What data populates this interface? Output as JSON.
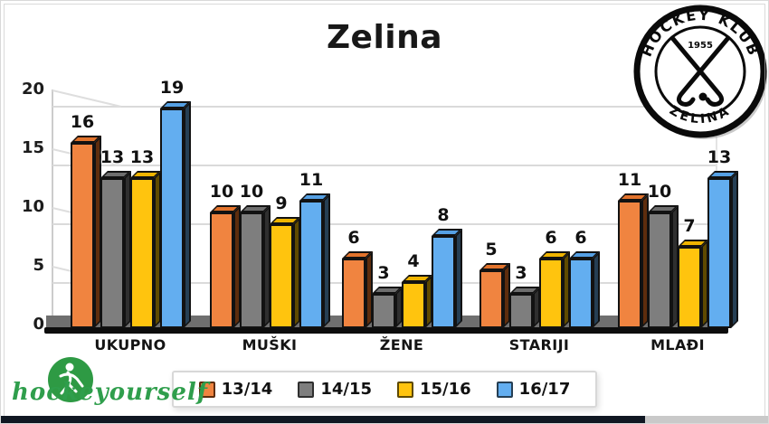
{
  "title": "Zelina",
  "logo": {
    "top_text": "HOCKEY KLUB",
    "bottom_text": "ZELINA",
    "year": "1955"
  },
  "watermark": {
    "text": "hockeyourself"
  },
  "video_progress": {
    "percent": 84
  },
  "chart_data": {
    "type": "bar",
    "style": "3d-clustered-column",
    "title": "Zelina",
    "categories": [
      "UKUPNO",
      "MUŠKI",
      "ŽENE",
      "STARIJI",
      "MLAĐI"
    ],
    "series": [
      {
        "name": "13/14",
        "color": "#F08440",
        "side_color": "#5E2D0D",
        "top_color": "#E2732C",
        "values": [
          16,
          10,
          6,
          5,
          11
        ]
      },
      {
        "name": "14/15",
        "color": "#7E7E7E",
        "side_color": "#2F2F2F",
        "top_color": "#6E6E6E",
        "values": [
          13,
          10,
          3,
          3,
          10
        ]
      },
      {
        "name": "15/16",
        "color": "#FFC40E",
        "side_color": "#5F4A00",
        "top_color": "#EFB400",
        "values": [
          13,
          9,
          4,
          6,
          7
        ]
      },
      {
        "name": "16/17",
        "color": "#63AEF0",
        "side_color": "#263F54",
        "top_color": "#55A0E4",
        "values": [
          19,
          11,
          8,
          6,
          13
        ]
      }
    ],
    "ylim": [
      0,
      20
    ],
    "yticks": [
      0,
      5,
      10,
      15,
      20
    ],
    "grid": true,
    "legend_position": "bottom",
    "xlabel": "",
    "ylabel": ""
  }
}
